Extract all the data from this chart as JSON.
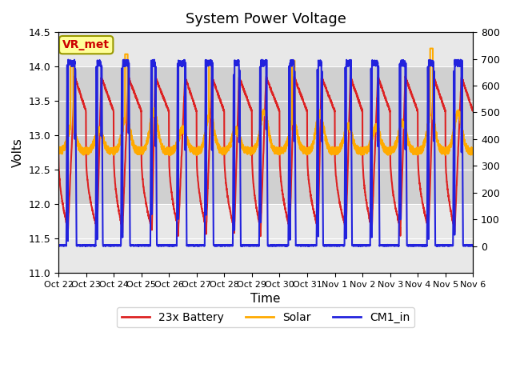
{
  "title": "System Power Voltage",
  "xlabel": "Time",
  "ylabel": "Volts",
  "ylim": [
    11.0,
    14.5
  ],
  "ylim2": [
    -100,
    800
  ],
  "yticks2": [
    0,
    100,
    200,
    300,
    400,
    500,
    600,
    700,
    800
  ],
  "background_color": "#ffffff",
  "plot_bg_color": "#e8e8e8",
  "shaded_band": [
    12.0,
    14.0
  ],
  "shaded_band_color": "#d0d0d0",
  "annotation_label": "VR_met",
  "annotation_color": "#cc0000",
  "annotation_box_color": "#ffff99",
  "annotation_box_edge": "#999900",
  "legend": [
    "23x Battery",
    "Solar",
    "CM1_in"
  ],
  "colors": [
    "#dd2222",
    "#ffaa00",
    "#2222dd"
  ],
  "linewidths": [
    1.5,
    1.5,
    1.5
  ],
  "n_days": 15,
  "tick_labels": [
    "Oct 22",
    "Oct 23",
    "Oct 24",
    "Oct 25",
    "Oct 26",
    "Oct 27",
    "Oct 28",
    "Oct 29",
    "Oct 30",
    "Oct 31",
    "Nov 1",
    "Nov 2",
    "Nov 3",
    "Nov 4",
    "Nov 5",
    "Nov 6"
  ]
}
